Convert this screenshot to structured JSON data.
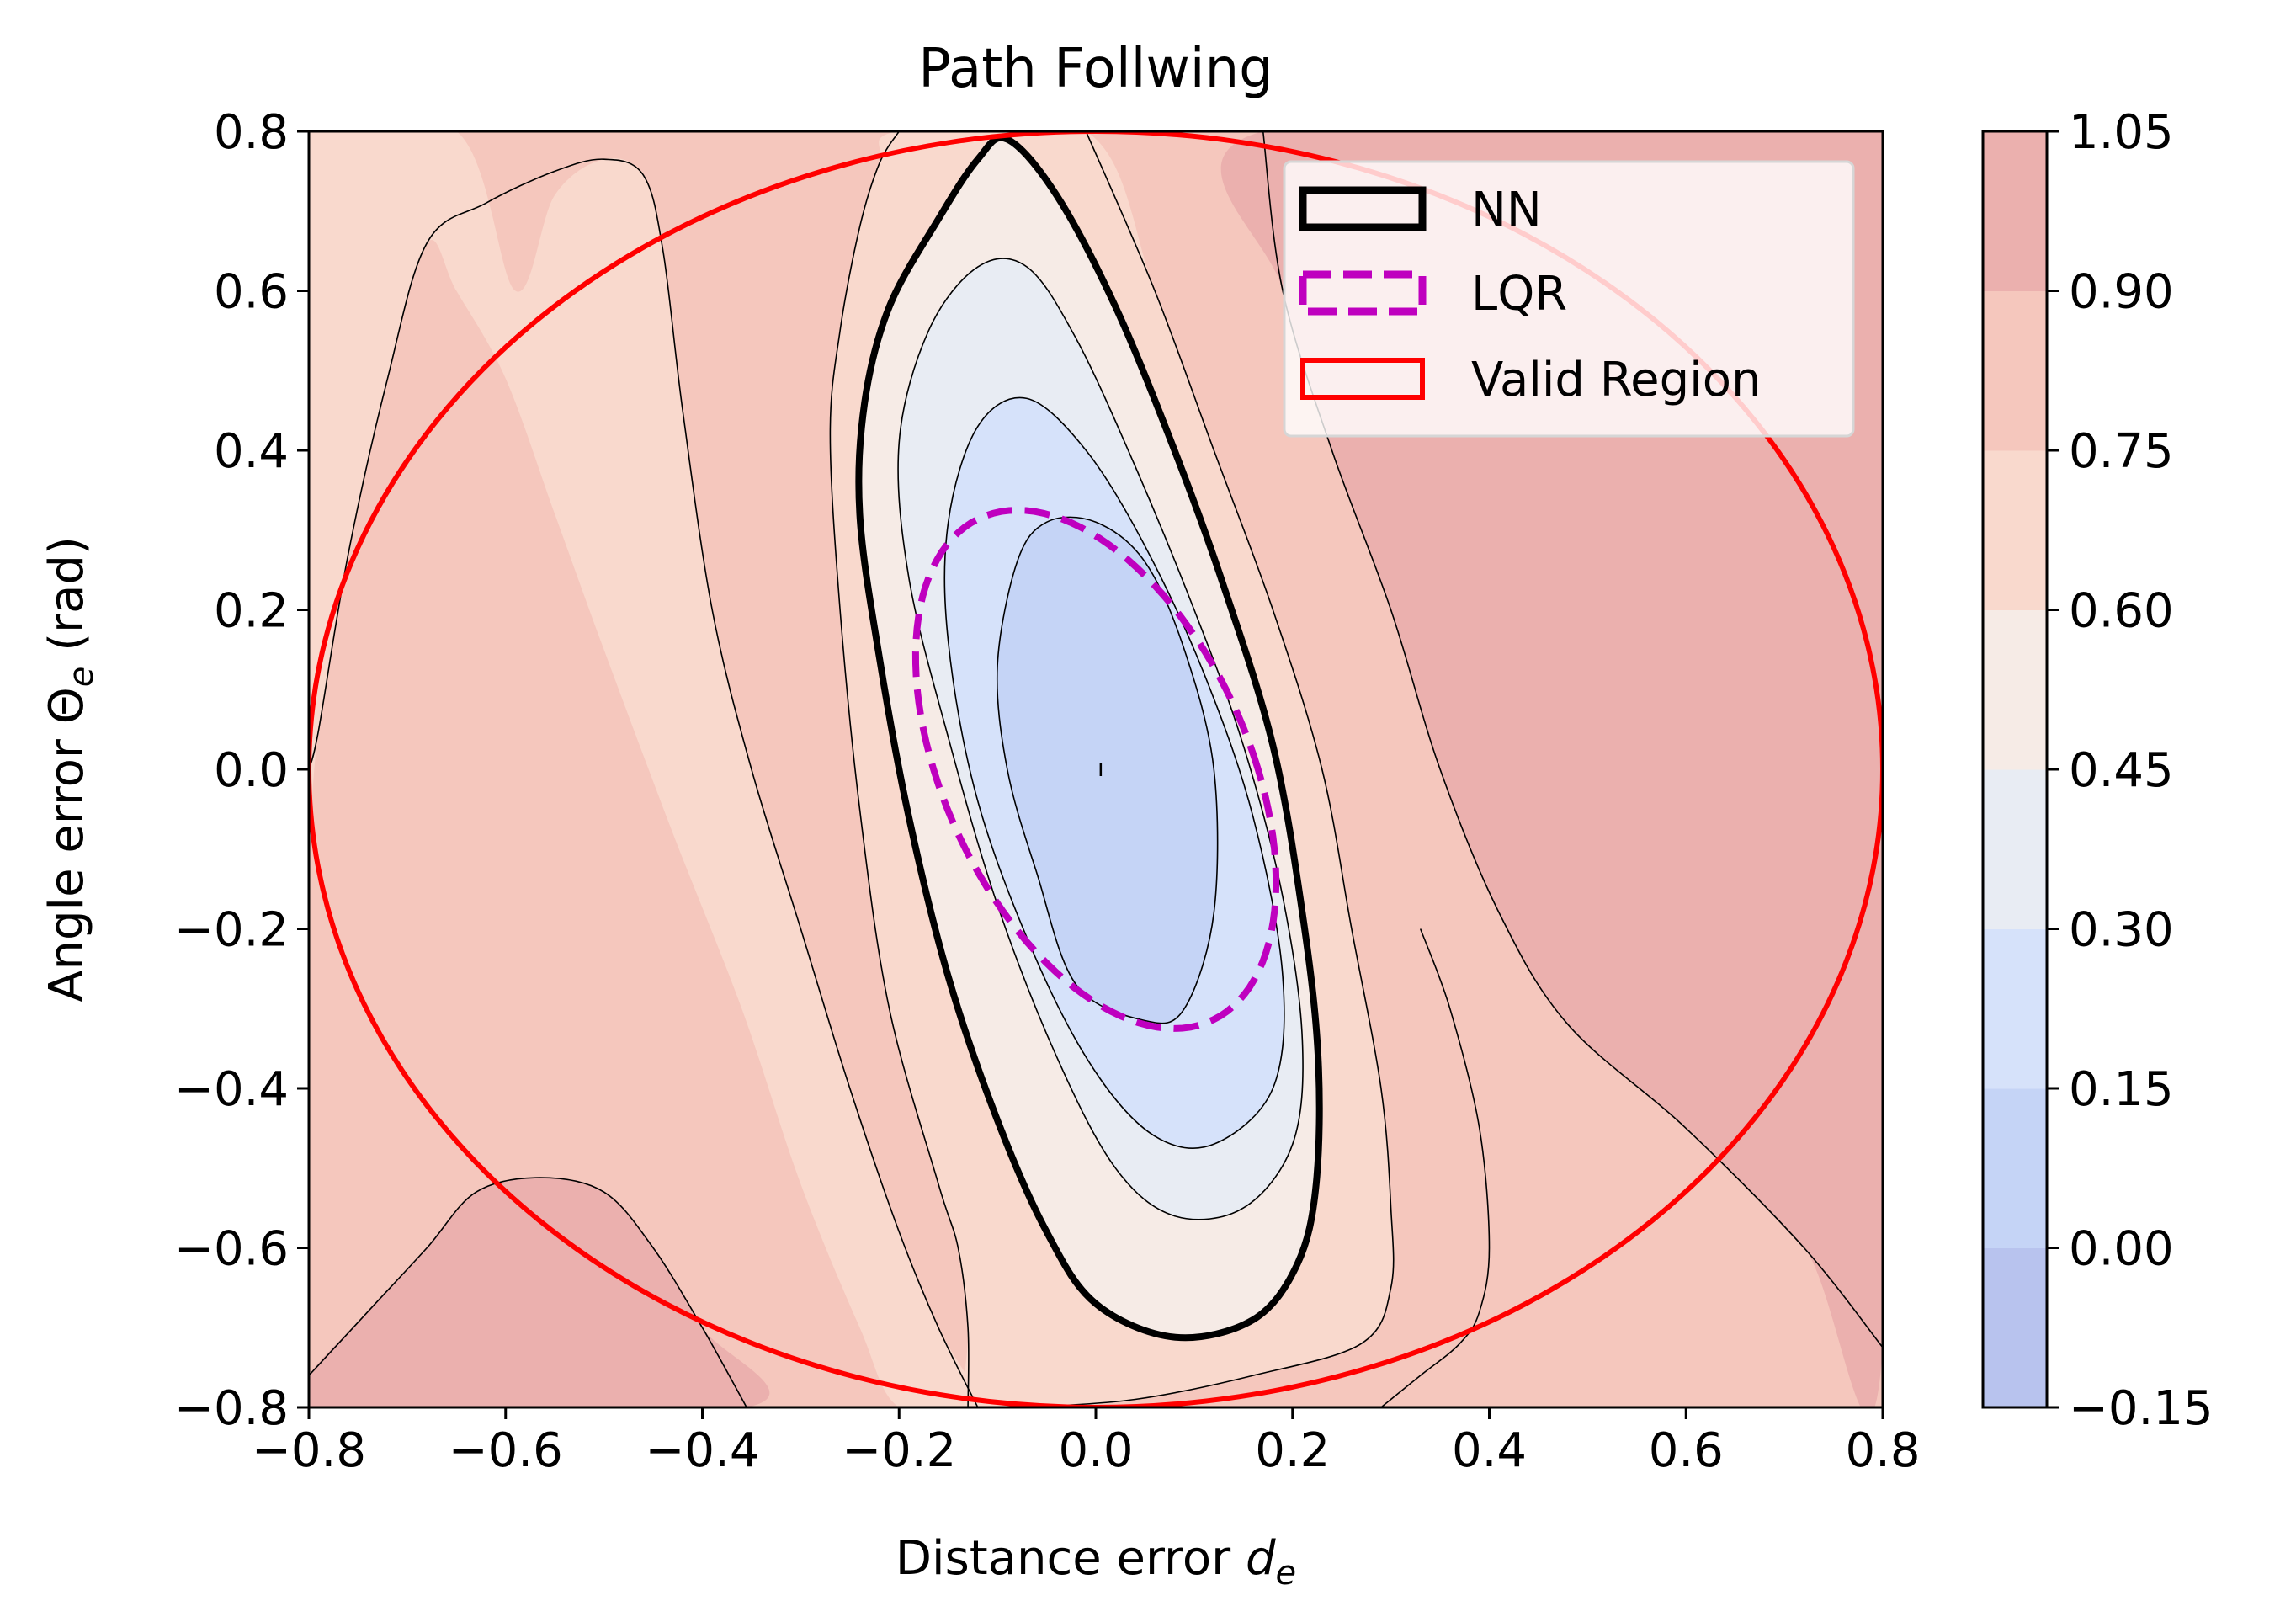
{
  "chart_data": {
    "type": "contour",
    "title": "Path Follwing",
    "xlabel": "Distance error ",
    "xlabel_symbol": "d",
    "xlabel_subscript": "e",
    "ylabel": "Angle error Θ",
    "ylabel_subscript": "e",
    "ylabel_suffix": " (rad)",
    "xlim": [
      -0.8,
      0.8
    ],
    "ylim": [
      -0.8,
      0.8
    ],
    "xticks": [
      -0.8,
      -0.6,
      -0.4,
      -0.2,
      0.0,
      0.2,
      0.4,
      0.6,
      0.8
    ],
    "yticks": [
      -0.8,
      -0.6,
      -0.4,
      -0.2,
      0.0,
      0.2,
      0.4,
      0.6,
      0.8
    ],
    "xtick_labels": [
      "−0.8",
      "−0.6",
      "−0.4",
      "−0.2",
      "0.0",
      "0.2",
      "0.4",
      "0.6",
      "0.8"
    ],
    "ytick_labels": [
      "−0.8",
      "−0.6",
      "−0.4",
      "−0.2",
      "0.0",
      "0.2",
      "0.4",
      "0.6",
      "0.8"
    ],
    "grid": false,
    "colormap": "coolwarm",
    "colorbar": {
      "levels": [
        -0.15,
        0.0,
        0.15,
        0.3,
        0.45,
        0.6,
        0.75,
        0.9,
        1.05
      ],
      "tick_labels": [
        "−0.15",
        "0.00",
        "0.15",
        "0.30",
        "0.45",
        "0.60",
        "0.75",
        "0.90",
        "1.05"
      ],
      "colors": [
        "#b8c3ee",
        "#c5d4f6",
        "#d6e2fa",
        "#e8ecf3",
        "#f6ebe6",
        "#f9d9cd",
        "#f5c7bd",
        "#ebb0ae"
      ]
    },
    "legend": {
      "placement": "upper right",
      "entries": [
        {
          "label": "NN",
          "color": "#000000",
          "style": "solid"
        },
        {
          "label": "LQR",
          "color": "#bf00bf",
          "style": "dashed"
        },
        {
          "label": "Valid Region",
          "color": "#ff0000",
          "style": "solid"
        }
      ]
    },
    "curves": {
      "valid_region": {
        "type": "ellipse",
        "center": [
          0.0,
          0.0
        ],
        "semi_axes": [
          0.8,
          0.8
        ],
        "color": "#ff0000"
      },
      "lqr": {
        "type": "ellipse",
        "center": [
          0.0,
          0.0
        ],
        "semi_axis_x": 0.165,
        "semi_axis_y": 0.325,
        "tilt_dx_per_dy": -0.245,
        "color": "#bf00bf"
      },
      "nn": {
        "color": "#000000",
        "points": [
          [
            -0.09,
            0.79
          ],
          [
            -0.04,
            0.72
          ],
          [
            0.02,
            0.58
          ],
          [
            0.08,
            0.4
          ],
          [
            0.13,
            0.23
          ],
          [
            0.18,
            0.03
          ],
          [
            0.21,
            -0.18
          ],
          [
            0.226,
            -0.36
          ],
          [
            0.224,
            -0.52
          ],
          [
            0.205,
            -0.62
          ],
          [
            0.16,
            -0.69
          ],
          [
            0.08,
            -0.712
          ],
          [
            0.0,
            -0.67
          ],
          [
            -0.05,
            -0.58
          ],
          [
            -0.1,
            -0.44
          ],
          [
            -0.15,
            -0.26
          ],
          [
            -0.19,
            -0.06
          ],
          [
            -0.22,
            0.14
          ],
          [
            -0.24,
            0.32
          ],
          [
            -0.235,
            0.46
          ],
          [
            -0.21,
            0.58
          ],
          [
            -0.16,
            0.69
          ],
          [
            -0.12,
            0.765
          ]
        ]
      }
    },
    "regions": {
      "level_015_030": [
        [
          0.0,
          0.31
        ],
        [
          0.05,
          0.26
        ],
        [
          0.09,
          0.15
        ],
        [
          0.12,
          0.0
        ],
        [
          0.12,
          -0.18
        ],
        [
          0.09,
          -0.3
        ],
        [
          0.05,
          -0.315
        ],
        [
          -0.02,
          -0.27
        ],
        [
          -0.06,
          -0.13
        ],
        [
          -0.09,
          0.0
        ],
        [
          -0.1,
          0.13
        ],
        [
          -0.08,
          0.26
        ],
        [
          -0.05,
          0.31
        ]
      ],
      "level_030_045": [
        [
          -0.07,
          0.465
        ],
        [
          -0.01,
          0.4
        ],
        [
          0.05,
          0.28
        ],
        [
          0.11,
          0.12
        ],
        [
          0.16,
          -0.06
        ],
        [
          0.19,
          -0.26
        ],
        [
          0.18,
          -0.4
        ],
        [
          0.12,
          -0.47
        ],
        [
          0.06,
          -0.46
        ],
        [
          0.0,
          -0.38
        ],
        [
          -0.06,
          -0.24
        ],
        [
          -0.12,
          -0.04
        ],
        [
          -0.15,
          0.16
        ],
        [
          -0.15,
          0.31
        ],
        [
          -0.12,
          0.43
        ]
      ],
      "level_045_060": [
        [
          -0.07,
          0.63
        ],
        [
          -0.02,
          0.54
        ],
        [
          0.04,
          0.38
        ],
        [
          0.1,
          0.2
        ],
        [
          0.15,
          0.03
        ],
        [
          0.19,
          -0.16
        ],
        [
          0.21,
          -0.34
        ],
        [
          0.2,
          -0.47
        ],
        [
          0.15,
          -0.55
        ],
        [
          0.08,
          -0.56
        ],
        [
          0.02,
          -0.5
        ],
        [
          -0.04,
          -0.36
        ],
        [
          -0.1,
          -0.17
        ],
        [
          -0.15,
          0.04
        ],
        [
          -0.19,
          0.24
        ],
        [
          -0.2,
          0.41
        ],
        [
          -0.17,
          0.55
        ],
        [
          -0.12,
          0.63
        ]
      ],
      "level_060_075": [
        [
          -0.2,
          0.8
        ],
        [
          -0.01,
          0.8
        ],
        [
          0.06,
          0.6
        ],
        [
          0.12,
          0.4
        ],
        [
          0.18,
          0.2
        ],
        [
          0.23,
          0.0
        ],
        [
          0.26,
          -0.2
        ],
        [
          0.29,
          -0.4
        ],
        [
          0.3,
          -0.55
        ],
        [
          0.3,
          -0.65
        ],
        [
          0.27,
          -0.72
        ],
        [
          0.16,
          -0.76
        ],
        [
          0.04,
          -0.79
        ],
        [
          -0.07,
          -0.8
        ],
        [
          -0.13,
          -0.8
        ],
        [
          -0.13,
          -0.7
        ],
        [
          -0.14,
          -0.6
        ],
        [
          -0.16,
          -0.52
        ],
        [
          -0.21,
          -0.3
        ],
        [
          -0.24,
          -0.05
        ],
        [
          -0.26,
          0.2
        ],
        [
          -0.27,
          0.42
        ],
        [
          -0.26,
          0.55
        ],
        [
          -0.24,
          0.68
        ],
        [
          -0.22,
          0.76
        ]
      ],
      "level_075_090": [
        [
          -0.8,
          0.8
        ],
        [
          0.8,
          0.8
        ],
        [
          0.8,
          -0.8
        ],
        [
          -0.8,
          -0.8
        ]
      ],
      "level_090_105_right": [
        [
          0.17,
          0.8
        ],
        [
          0.8,
          0.8
        ],
        [
          0.8,
          -0.725
        ],
        [
          0.72,
          -0.6
        ],
        [
          0.6,
          -0.45
        ],
        [
          0.48,
          -0.32
        ],
        [
          0.41,
          -0.18
        ],
        [
          0.35,
          0.0
        ],
        [
          0.3,
          0.2
        ],
        [
          0.24,
          0.4
        ],
        [
          0.19,
          0.6
        ]
      ],
      "level_090_105_bottom_left": [
        [
          -0.8,
          -0.76
        ],
        [
          -0.74,
          -0.68
        ],
        [
          -0.68,
          -0.6
        ],
        [
          -0.63,
          -0.53
        ],
        [
          -0.565,
          -0.512
        ],
        [
          -0.5,
          -0.53
        ],
        [
          -0.45,
          -0.6
        ],
        [
          -0.4,
          -0.7
        ],
        [
          -0.355,
          -0.8
        ],
        [
          -0.8,
          -0.8
        ]
      ],
      "level_060_075_left": [
        [
          -0.8,
          0.0
        ],
        [
          -0.8,
          0.8
        ],
        [
          -0.65,
          0.8
        ],
        [
          -0.59,
          0.6
        ],
        [
          -0.55,
          0.72
        ],
        [
          -0.5,
          0.765
        ],
        [
          -0.46,
          0.745
        ],
        [
          -0.44,
          0.65
        ],
        [
          -0.42,
          0.45
        ],
        [
          -0.39,
          0.2
        ],
        [
          -0.35,
          0.0
        ],
        [
          -0.3,
          -0.2
        ],
        [
          -0.25,
          -0.4
        ],
        [
          -0.2,
          -0.58
        ],
        [
          -0.16,
          -0.7
        ],
        [
          -0.12,
          -0.8
        ],
        [
          -0.2,
          -0.8
        ],
        [
          -0.24,
          -0.7
        ],
        [
          -0.3,
          -0.52
        ],
        [
          -0.36,
          -0.3
        ],
        [
          -0.43,
          -0.08
        ],
        [
          -0.5,
          0.15
        ],
        [
          -0.55,
          0.32
        ],
        [
          -0.6,
          0.49
        ],
        [
          -0.65,
          0.6
        ],
        [
          -0.68,
          0.66
        ],
        [
          -0.72,
          0.49
        ],
        [
          -0.76,
          0.27
        ],
        [
          -0.79,
          0.05
        ]
      ]
    },
    "thin_contours": [
      [
        [
          0.0,
          0.31
        ],
        [
          0.05,
          0.26
        ],
        [
          0.09,
          0.15
        ],
        [
          0.12,
          0.0
        ],
        [
          0.12,
          -0.18
        ],
        [
          0.09,
          -0.3
        ],
        [
          0.05,
          -0.315
        ],
        [
          -0.02,
          -0.27
        ],
        [
          -0.06,
          -0.13
        ],
        [
          -0.09,
          0.0
        ],
        [
          -0.1,
          0.13
        ],
        [
          -0.08,
          0.26
        ],
        [
          -0.05,
          0.31
        ],
        [
          0.0,
          0.31
        ]
      ],
      [
        [
          -0.07,
          0.465
        ],
        [
          -0.01,
          0.4
        ],
        [
          0.05,
          0.28
        ],
        [
          0.11,
          0.12
        ],
        [
          0.16,
          -0.06
        ],
        [
          0.19,
          -0.26
        ],
        [
          0.18,
          -0.4
        ],
        [
          0.12,
          -0.47
        ],
        [
          0.06,
          -0.46
        ],
        [
          0.0,
          -0.38
        ],
        [
          -0.06,
          -0.24
        ],
        [
          -0.12,
          -0.04
        ],
        [
          -0.15,
          0.16
        ],
        [
          -0.15,
          0.31
        ],
        [
          -0.12,
          0.43
        ],
        [
          -0.07,
          0.465
        ]
      ],
      [
        [
          -0.07,
          0.63
        ],
        [
          -0.02,
          0.54
        ],
        [
          0.04,
          0.38
        ],
        [
          0.1,
          0.2
        ],
        [
          0.15,
          0.03
        ],
        [
          0.19,
          -0.16
        ],
        [
          0.21,
          -0.34
        ],
        [
          0.2,
          -0.47
        ],
        [
          0.15,
          -0.55
        ],
        [
          0.08,
          -0.56
        ],
        [
          0.02,
          -0.5
        ],
        [
          -0.04,
          -0.36
        ],
        [
          -0.1,
          -0.17
        ],
        [
          -0.15,
          0.04
        ],
        [
          -0.19,
          0.24
        ],
        [
          -0.2,
          0.41
        ],
        [
          -0.17,
          0.55
        ],
        [
          -0.12,
          0.63
        ],
        [
          -0.07,
          0.63
        ]
      ],
      [
        [
          -0.01,
          0.8
        ],
        [
          0.06,
          0.6
        ],
        [
          0.12,
          0.4
        ],
        [
          0.18,
          0.2
        ],
        [
          0.23,
          0.0
        ],
        [
          0.26,
          -0.2
        ],
        [
          0.29,
          -0.4
        ],
        [
          0.3,
          -0.55
        ],
        [
          0.3,
          -0.65
        ],
        [
          0.27,
          -0.72
        ],
        [
          0.16,
          -0.76
        ],
        [
          0.04,
          -0.79
        ],
        [
          -0.07,
          -0.8
        ]
      ],
      [
        [
          -0.2,
          0.8
        ],
        [
          -0.22,
          0.76
        ],
        [
          -0.24,
          0.68
        ],
        [
          -0.26,
          0.55
        ],
        [
          -0.27,
          0.42
        ],
        [
          -0.26,
          0.2
        ],
        [
          -0.24,
          -0.05
        ],
        [
          -0.21,
          -0.3
        ],
        [
          -0.16,
          -0.52
        ],
        [
          -0.14,
          -0.6
        ],
        [
          -0.13,
          -0.7
        ],
        [
          -0.13,
          -0.8
        ]
      ],
      [
        [
          0.17,
          0.8
        ],
        [
          0.19,
          0.6
        ],
        [
          0.24,
          0.4
        ],
        [
          0.3,
          0.2
        ],
        [
          0.35,
          0.0
        ],
        [
          0.41,
          -0.18
        ],
        [
          0.48,
          -0.32
        ],
        [
          0.6,
          -0.45
        ],
        [
          0.72,
          -0.6
        ],
        [
          0.8,
          -0.725
        ]
      ],
      [
        [
          0.29,
          -0.8
        ],
        [
          0.33,
          -0.76
        ],
        [
          0.37,
          -0.72
        ],
        [
          0.39,
          -0.68
        ],
        [
          0.4,
          -0.6
        ],
        [
          0.39,
          -0.45
        ],
        [
          0.36,
          -0.3
        ],
        [
          0.33,
          -0.2
        ]
      ],
      [
        [
          -0.8,
          -0.76
        ],
        [
          -0.74,
          -0.68
        ],
        [
          -0.68,
          -0.6
        ],
        [
          -0.63,
          -0.53
        ],
        [
          -0.565,
          -0.512
        ],
        [
          -0.5,
          -0.53
        ],
        [
          -0.45,
          -0.6
        ],
        [
          -0.4,
          -0.7
        ],
        [
          -0.355,
          -0.8
        ]
      ],
      [
        [
          -0.8,
          0.0
        ],
        [
          -0.79,
          0.05
        ],
        [
          -0.76,
          0.27
        ],
        [
          -0.72,
          0.49
        ],
        [
          -0.68,
          0.66
        ],
        [
          -0.62,
          0.71
        ],
        [
          -0.55,
          0.75
        ],
        [
          -0.5,
          0.765
        ],
        [
          -0.46,
          0.745
        ],
        [
          -0.44,
          0.65
        ],
        [
          -0.42,
          0.45
        ],
        [
          -0.39,
          0.2
        ],
        [
          -0.35,
          0.0
        ],
        [
          -0.3,
          -0.2
        ],
        [
          -0.25,
          -0.4
        ],
        [
          -0.2,
          -0.58
        ],
        [
          -0.16,
          -0.7
        ],
        [
          -0.12,
          -0.8
        ]
      ]
    ],
    "center_mark": [
      0.005,
      0.0
    ]
  }
}
